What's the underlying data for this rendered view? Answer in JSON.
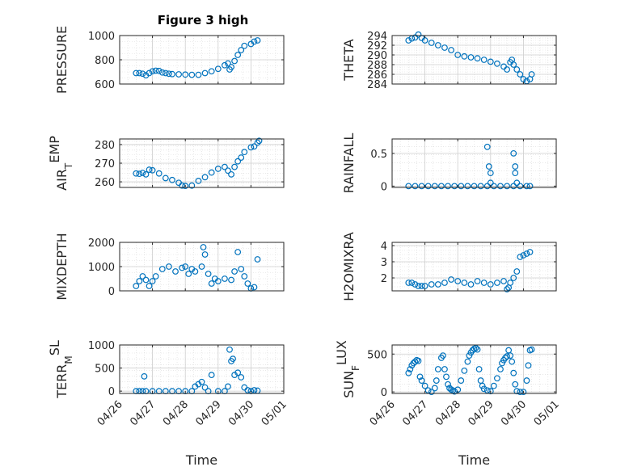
{
  "figure": {
    "title": "Figure 3 high",
    "marker_color": "#0072BD",
    "marker": "circle-open"
  },
  "chart_data": [
    {
      "type": "scatter",
      "ylabel": "PRESSURE",
      "ylim": [
        600,
        1000
      ],
      "yticks": [
        "600",
        "800",
        "1000"
      ],
      "ytick_values": [
        600,
        800,
        1000
      ],
      "xlim": [
        "04/26",
        "05/01"
      ],
      "xticks": [],
      "x": [
        26.5,
        26.6,
        26.7,
        26.8,
        26.9,
        27.0,
        27.1,
        27.2,
        27.3,
        27.4,
        27.5,
        27.6,
        27.8,
        28.0,
        28.2,
        28.4,
        28.6,
        28.8,
        29.0,
        29.2,
        29.3,
        29.35,
        29.4,
        29.5,
        29.6,
        29.7,
        29.8,
        30.0,
        30.1,
        30.2
      ],
      "y": [
        690,
        690,
        685,
        672,
        690,
        705,
        710,
        708,
        695,
        690,
        685,
        682,
        680,
        678,
        676,
        676,
        690,
        705,
        725,
        755,
        770,
        720,
        740,
        790,
        840,
        880,
        915,
        930,
        950,
        960
      ]
    },
    {
      "type": "scatter",
      "ylabel": "THETA",
      "ylim": [
        284,
        294
      ],
      "yticks": [
        "284",
        "286",
        "288",
        "290",
        "292",
        "294"
      ],
      "ytick_values": [
        284,
        286,
        288,
        290,
        292,
        294
      ],
      "xlim": [
        "04/26",
        "05/01"
      ],
      "xticks": [],
      "x": [
        26.5,
        26.6,
        26.7,
        26.8,
        26.9,
        27.0,
        27.2,
        27.4,
        27.6,
        27.8,
        28.0,
        28.2,
        28.4,
        28.6,
        28.8,
        29.0,
        29.2,
        29.4,
        29.5,
        29.6,
        29.65,
        29.7,
        29.8,
        29.9,
        30.0,
        30.1,
        30.2,
        30.25
      ],
      "y": [
        293.0,
        293.4,
        293.6,
        294.2,
        293.5,
        293.0,
        292.5,
        292.0,
        291.5,
        291.0,
        290.0,
        289.7,
        289.5,
        289.3,
        289.0,
        288.6,
        288.2,
        287.6,
        287.0,
        288.5,
        289.0,
        288.0,
        287.0,
        286.0,
        285.0,
        284.6,
        285.0,
        286.0
      ]
    },
    {
      "type": "scatter",
      "ylabel": "AIR_TEMP",
      "ylabel_main": "AIR",
      "ylabel_sub": "T",
      "ylabel_rest": "EMP",
      "ylim": [
        257,
        283
      ],
      "yticks": [
        "260",
        "270",
        "280"
      ],
      "ytick_values": [
        260,
        270,
        280
      ],
      "xlim": [
        "04/26",
        "05/01"
      ],
      "xticks": [],
      "x": [
        26.5,
        26.6,
        26.7,
        26.8,
        26.9,
        27.0,
        27.2,
        27.4,
        27.6,
        27.8,
        27.9,
        28.0,
        28.2,
        28.4,
        28.6,
        28.8,
        29.0,
        29.2,
        29.3,
        29.4,
        29.5,
        29.6,
        29.7,
        29.8,
        30.0,
        30.1,
        30.2,
        30.25
      ],
      "y": [
        264.5,
        264.3,
        264.8,
        264.0,
        266.5,
        266.2,
        264.5,
        262.0,
        261.0,
        259.5,
        258.0,
        257.8,
        258.0,
        260.5,
        262.5,
        265.0,
        267.0,
        268.0,
        266.0,
        264.0,
        268.0,
        271.0,
        273.0,
        276.0,
        278.5,
        279.0,
        281.0,
        282.0
      ]
    },
    {
      "type": "scatter",
      "ylabel": "RAINFALL",
      "ylim": [
        -0.02,
        0.72
      ],
      "yticks": [
        "0",
        "0.5"
      ],
      "ytick_values": [
        0,
        0.5
      ],
      "xlim": [
        "04/26",
        "05/01"
      ],
      "xticks": [],
      "x": [
        26.5,
        26.7,
        26.9,
        27.1,
        27.3,
        27.5,
        27.7,
        27.9,
        28.1,
        28.3,
        28.5,
        28.7,
        28.9,
        29.1,
        29.3,
        29.5,
        29.7,
        29.9,
        30.1,
        30.2,
        28.9,
        28.95,
        29.0,
        29.0,
        29.7,
        29.75,
        29.75,
        29.8
      ],
      "y": [
        0,
        0,
        0,
        0,
        0,
        0,
        0,
        0,
        0,
        0,
        0,
        0,
        0,
        0,
        0,
        0,
        0,
        0,
        0,
        0,
        0.6,
        0.3,
        0.2,
        0.05,
        0.5,
        0.3,
        0.2,
        0.05
      ]
    },
    {
      "type": "scatter",
      "ylabel": "MIXDEPTH",
      "ylim": [
        0,
        2000
      ],
      "yticks": [
        "0",
        "1000",
        "2000"
      ],
      "ytick_values": [
        0,
        1000,
        2000
      ],
      "xlim": [
        "04/26",
        "05/01"
      ],
      "xticks": [],
      "x": [
        26.5,
        26.6,
        26.7,
        26.8,
        26.9,
        27.0,
        27.1,
        27.3,
        27.5,
        27.7,
        27.9,
        28.0,
        28.1,
        28.2,
        28.3,
        28.5,
        28.55,
        28.6,
        28.7,
        28.8,
        28.9,
        29.0,
        29.2,
        29.4,
        29.5,
        29.6,
        29.7,
        29.8,
        29.9,
        30.0,
        30.1,
        30.2
      ],
      "y": [
        200,
        400,
        600,
        450,
        200,
        400,
        600,
        900,
        1000,
        800,
        950,
        1000,
        700,
        900,
        800,
        1000,
        1800,
        1500,
        700,
        300,
        500,
        400,
        500,
        450,
        800,
        1600,
        900,
        600,
        300,
        100,
        150,
        1300
      ]
    },
    {
      "type": "scatter",
      "ylabel": "H2OMIXRA",
      "ylim": [
        1.2,
        4.2
      ],
      "yticks": [
        "2",
        "3",
        "4"
      ],
      "ytick_values": [
        2,
        3,
        4
      ],
      "xlim": [
        "04/26",
        "05/01"
      ],
      "xticks": [],
      "x": [
        26.5,
        26.6,
        26.7,
        26.8,
        26.9,
        27.0,
        27.2,
        27.4,
        27.6,
        27.8,
        28.0,
        28.2,
        28.4,
        28.6,
        28.8,
        29.0,
        29.2,
        29.4,
        29.5,
        29.55,
        29.6,
        29.7,
        29.8,
        29.9,
        30.0,
        30.1,
        30.2
      ],
      "y": [
        1.7,
        1.7,
        1.6,
        1.5,
        1.5,
        1.5,
        1.6,
        1.6,
        1.7,
        1.9,
        1.8,
        1.7,
        1.6,
        1.8,
        1.7,
        1.6,
        1.7,
        1.8,
        1.3,
        1.4,
        1.7,
        2.0,
        2.4,
        3.3,
        3.4,
        3.5,
        3.6
      ]
    },
    {
      "type": "scatter",
      "ylabel": "TERR_MSL",
      "ylabel_main": "TERR",
      "ylabel_sub": "M",
      "ylabel_rest": "SL",
      "ylim": [
        -50,
        1000
      ],
      "yticks": [
        "0",
        "500",
        "1000"
      ],
      "ytick_values": [
        0,
        500,
        1000
      ],
      "xlim": [
        "04/26",
        "05/01"
      ],
      "xticks": [
        "04/26",
        "04/27",
        "04/28",
        "04/29",
        "04/30",
        "05/01"
      ],
      "xtick_values": [
        26,
        27,
        28,
        29,
        30,
        31
      ],
      "xlabel": "Time",
      "x": [
        26.5,
        26.6,
        26.7,
        26.75,
        26.8,
        27.0,
        27.2,
        27.4,
        27.6,
        27.8,
        28.0,
        28.2,
        28.3,
        28.4,
        28.5,
        28.6,
        28.7,
        28.8,
        29.0,
        29.2,
        29.3,
        29.35,
        29.4,
        29.45,
        29.5,
        29.6,
        29.7,
        29.8,
        29.9,
        30.0,
        30.1,
        30.2
      ],
      "y": [
        0,
        0,
        0,
        320,
        0,
        0,
        0,
        0,
        0,
        0,
        0,
        0,
        100,
        150,
        200,
        80,
        0,
        350,
        0,
        0,
        100,
        900,
        650,
        700,
        350,
        400,
        300,
        80,
        20,
        0,
        20,
        10
      ]
    },
    {
      "type": "scatter",
      "ylabel": "SUN_FLUX",
      "ylabel_main": "SUN",
      "ylabel_sub": "F",
      "ylabel_rest": "LUX",
      "ylim": [
        -20,
        620
      ],
      "yticks": [
        "0",
        "500"
      ],
      "ytick_values": [
        0,
        500
      ],
      "xlim": [
        "04/26",
        "05/01"
      ],
      "xticks": [
        "04/26",
        "04/27",
        "04/28",
        "04/29",
        "04/30",
        "05/01"
      ],
      "xtick_values": [
        26,
        27,
        28,
        29,
        30,
        31
      ],
      "xlabel": "Time",
      "x": [
        26.5,
        26.55,
        26.6,
        26.65,
        26.7,
        26.75,
        26.8,
        26.85,
        26.9,
        27.0,
        27.1,
        27.2,
        27.3,
        27.35,
        27.4,
        27.5,
        27.55,
        27.6,
        27.65,
        27.7,
        27.75,
        27.8,
        27.85,
        27.9,
        28.0,
        28.1,
        28.2,
        28.3,
        28.35,
        28.4,
        28.45,
        28.5,
        28.55,
        28.6,
        28.65,
        28.7,
        28.75,
        28.8,
        28.9,
        29.0,
        29.1,
        29.2,
        29.3,
        29.35,
        29.4,
        29.45,
        29.5,
        29.55,
        29.6,
        29.65,
        29.7,
        29.75,
        29.8,
        29.9,
        30.0,
        30.1,
        30.15,
        30.2,
        30.25
      ],
      "y": [
        250,
        300,
        350,
        380,
        400,
        420,
        410,
        200,
        150,
        80,
        20,
        0,
        50,
        150,
        300,
        450,
        480,
        300,
        200,
        100,
        50,
        30,
        20,
        5,
        30,
        150,
        280,
        400,
        480,
        520,
        550,
        570,
        580,
        560,
        300,
        150,
        80,
        40,
        20,
        10,
        80,
        180,
        300,
        380,
        420,
        450,
        470,
        550,
        480,
        400,
        250,
        100,
        10,
        0,
        0,
        150,
        350,
        550,
        560
      ]
    }
  ]
}
